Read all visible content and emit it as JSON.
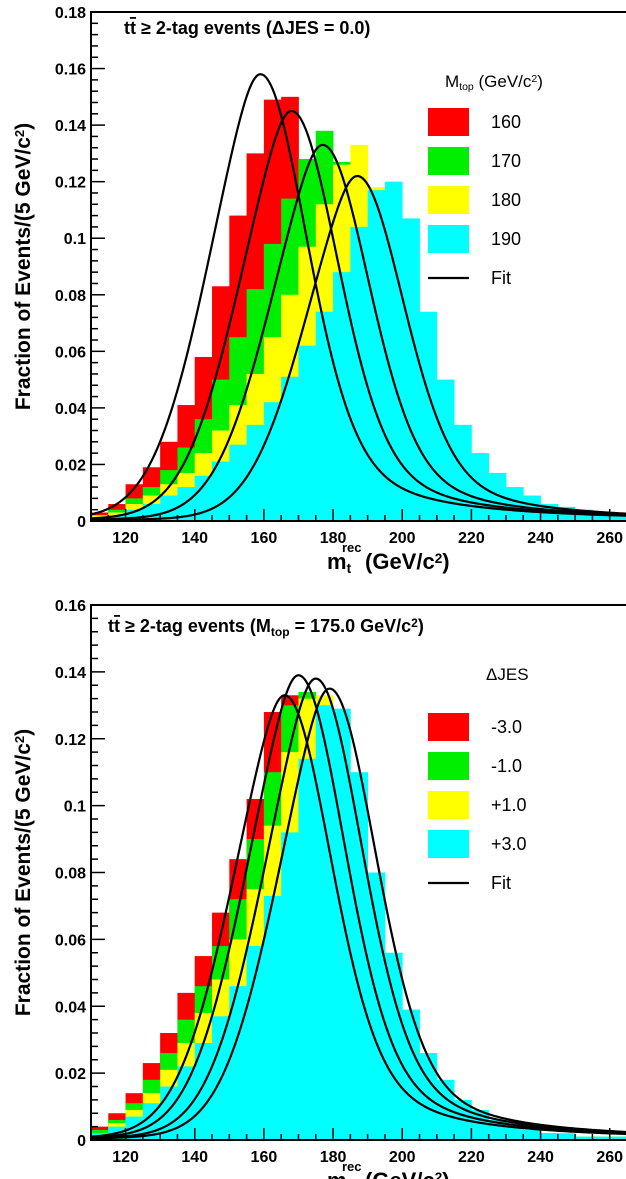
{
  "chart_data": [
    {
      "type": "histogram",
      "title": "t̅t ≥  2-tag events (ΔJES =  0.0)",
      "xlabel": "m_t^rec (GeV/c²)",
      "ylabel": "Fraction of Events/(5 GeV/c²)",
      "xlim": [
        110,
        265
      ],
      "ylim": [
        0,
        0.18
      ],
      "x_ticks": [
        "120",
        "140",
        "160",
        "180",
        "200",
        "220",
        "240",
        "260"
      ],
      "y_ticks": [
        "0",
        "0.02",
        "0.04",
        "0.06",
        "0.08",
        "0.1",
        "0.12",
        "0.14",
        "0.16",
        "0.18"
      ],
      "legend_title": "M_top (GeV/c²)",
      "legend_position": "top-right",
      "fit_label": "Fit",
      "bin_edges": [
        110,
        115,
        120,
        125,
        130,
        135,
        140,
        145,
        150,
        155,
        160,
        165,
        170,
        175,
        180,
        185,
        190,
        195,
        200,
        205,
        210,
        215,
        220,
        225,
        230,
        235,
        240,
        245,
        250,
        255,
        260,
        265
      ],
      "series": [
        {
          "name": "160",
          "color": "#ff0000",
          "values": [
            0.003,
            0.006,
            0.013,
            0.019,
            0.028,
            0.041,
            0.058,
            0.083,
            0.108,
            0.13,
            0.149,
            0.15,
            0.128,
            0.103,
            0.07,
            0.047,
            0.032,
            0.023,
            0.017,
            0.012,
            0.009,
            0.007,
            0.005,
            0.004,
            0.003,
            0.002,
            0.002,
            0.002,
            0.001,
            0.001,
            0.001
          ],
          "fit_peak": 159,
          "fit_height": 0.158
        },
        {
          "name": "170",
          "color": "#00ee00",
          "values": [
            0.002,
            0.004,
            0.008,
            0.012,
            0.018,
            0.026,
            0.036,
            0.05,
            0.065,
            0.082,
            0.098,
            0.114,
            0.128,
            0.138,
            0.127,
            0.103,
            0.076,
            0.052,
            0.036,
            0.025,
            0.017,
            0.012,
            0.009,
            0.007,
            0.005,
            0.004,
            0.003,
            0.002,
            0.002,
            0.001,
            0.001
          ],
          "fit_peak": 168,
          "fit_height": 0.145
        },
        {
          "name": "180",
          "color": "#ffff00",
          "values": [
            0.002,
            0.003,
            0.006,
            0.009,
            0.013,
            0.017,
            0.024,
            0.032,
            0.041,
            0.052,
            0.065,
            0.08,
            0.097,
            0.112,
            0.126,
            0.133,
            0.118,
            0.09,
            0.063,
            0.043,
            0.029,
            0.02,
            0.014,
            0.01,
            0.007,
            0.005,
            0.004,
            0.003,
            0.002,
            0.002,
            0.001
          ],
          "fit_peak": 177,
          "fit_height": 0.133
        },
        {
          "name": "190",
          "color": "#00ffff",
          "values": [
            0.001,
            0.002,
            0.004,
            0.006,
            0.009,
            0.012,
            0.016,
            0.021,
            0.027,
            0.034,
            0.042,
            0.051,
            0.062,
            0.074,
            0.088,
            0.104,
            0.117,
            0.12,
            0.107,
            0.074,
            0.05,
            0.034,
            0.024,
            0.017,
            0.012,
            0.009,
            0.006,
            0.005,
            0.004,
            0.003,
            0.002
          ],
          "fit_peak": 187,
          "fit_height": 0.122
        }
      ]
    },
    {
      "type": "histogram",
      "title": "t̅t ≥ 2-tag events (M_top = 175.0 GeV/c²)",
      "xlabel": "m_t^rec (GeV/c²)",
      "ylabel": "Fraction of Events/(5 GeV/c²)",
      "xlim": [
        110,
        265
      ],
      "ylim": [
        0,
        0.16
      ],
      "x_ticks": [
        "120",
        "140",
        "160",
        "180",
        "200",
        "220",
        "240",
        "260"
      ],
      "y_ticks": [
        "0",
        "0.02",
        "0.04",
        "0.06",
        "0.08",
        "0.1",
        "0.12",
        "0.14",
        "0.16"
      ],
      "legend_title": "ΔJES",
      "legend_position": "top-right",
      "fit_label": "Fit",
      "bin_edges": [
        110,
        115,
        120,
        125,
        130,
        135,
        140,
        145,
        150,
        155,
        160,
        165,
        170,
        175,
        180,
        185,
        190,
        195,
        200,
        205,
        210,
        215,
        220,
        225,
        230,
        235,
        240,
        245,
        250,
        255,
        260,
        265
      ],
      "series": [
        {
          "name": "-3.0",
          "color": "#ff0000",
          "values": [
            0.004,
            0.008,
            0.014,
            0.023,
            0.032,
            0.044,
            0.055,
            0.068,
            0.084,
            0.102,
            0.128,
            0.133,
            0.12,
            0.1,
            0.075,
            0.052,
            0.036,
            0.025,
            0.018,
            0.013,
            0.009,
            0.007,
            0.005,
            0.004,
            0.003,
            0.002,
            0.002,
            0.001,
            0.001,
            0.001,
            0.001
          ],
          "fit_peak": 166,
          "fit_height": 0.133
        },
        {
          "name": "-1.0",
          "color": "#00ee00",
          "values": [
            0.003,
            0.006,
            0.011,
            0.018,
            0.026,
            0.036,
            0.046,
            0.058,
            0.072,
            0.09,
            0.11,
            0.13,
            0.134,
            0.118,
            0.093,
            0.066,
            0.045,
            0.031,
            0.022,
            0.015,
            0.011,
            0.008,
            0.006,
            0.004,
            0.003,
            0.002,
            0.002,
            0.001,
            0.001,
            0.001,
            0.001
          ],
          "fit_peak": 170,
          "fit_height": 0.139
        },
        {
          "name": "+1.0",
          "color": "#ffff00",
          "values": [
            0.002,
            0.005,
            0.009,
            0.014,
            0.021,
            0.029,
            0.038,
            0.048,
            0.06,
            0.075,
            0.094,
            0.116,
            0.132,
            0.133,
            0.115,
            0.086,
            0.058,
            0.04,
            0.028,
            0.019,
            0.013,
            0.009,
            0.007,
            0.005,
            0.004,
            0.003,
            0.002,
            0.001,
            0.001,
            0.001,
            0.001
          ],
          "fit_peak": 175,
          "fit_height": 0.138
        },
        {
          "name": "+3.0",
          "color": "#00ffff",
          "values": [
            0.002,
            0.004,
            0.007,
            0.011,
            0.016,
            0.022,
            0.029,
            0.037,
            0.046,
            0.058,
            0.073,
            0.092,
            0.114,
            0.13,
            0.129,
            0.11,
            0.08,
            0.056,
            0.039,
            0.026,
            0.018,
            0.012,
            0.009,
            0.006,
            0.004,
            0.003,
            0.002,
            0.002,
            0.001,
            0.001,
            0.001
          ],
          "fit_peak": 179,
          "fit_height": 0.135
        }
      ]
    }
  ]
}
